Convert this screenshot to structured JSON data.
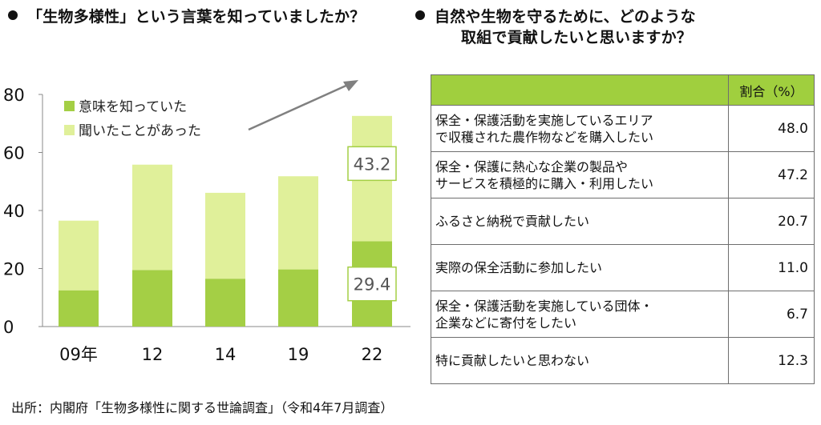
{
  "left_heading": "「生物多様性」という言葉を知っていましたか？",
  "right_heading": {
    "line1": "自然や生物を守るために、どのような",
    "line2": "取組で貢献したいと思いますか？"
  },
  "chart_data": {
    "type": "bar",
    "stacked": true,
    "categories": [
      "09年",
      "12",
      "14",
      "19",
      "22"
    ],
    "series": [
      {
        "name": "意味を知っていた",
        "values": [
          12.5,
          19.5,
          16.5,
          19.7,
          29.4
        ]
      },
      {
        "name": "聞いたことがあった",
        "values": [
          24.0,
          36.3,
          29.6,
          32.1,
          43.2
        ]
      }
    ],
    "ylim": [
      0,
      80
    ],
    "yticks": [
      0,
      20,
      40,
      60,
      80
    ],
    "legend_position": "top-left",
    "grid": false,
    "annotations": [
      {
        "category": "22",
        "series": "意味を知っていた",
        "label": "29.4"
      },
      {
        "category": "22",
        "series": "聞いたことがあった",
        "label": "43.2"
      }
    ],
    "trend_arrow": true,
    "colors": {
      "series1": "#a4cf45",
      "series2": "#e0f09a"
    }
  },
  "table": {
    "header_pct": "割合（%）",
    "rows": [
      {
        "line1": "保全・保護活動を実施しているエリア",
        "line2": "で収穫された農作物などを購入したい",
        "pct": "48.0"
      },
      {
        "line1": "保全・保護に熱心な企業の製品や",
        "line2": "サービスを積極的に購入・利用したい",
        "pct": "47.2"
      },
      {
        "line1": "ふるさと納税で貢献したい",
        "line2": "",
        "pct": "20.7"
      },
      {
        "line1": "実際の保全活動に参加したい",
        "line2": "",
        "pct": "11.0"
      },
      {
        "line1": "保全・保護活動を実施している団体・",
        "line2": "企業などに寄付をしたい",
        "pct": "6.7"
      },
      {
        "line1": "特に貢献したいと思わない",
        "line2": "",
        "pct": "12.3"
      }
    ],
    "header_color": "#a0cf3e"
  },
  "source": "出所：内閣府「生物多様性に関する世論調査」（令和4年7月調査）"
}
